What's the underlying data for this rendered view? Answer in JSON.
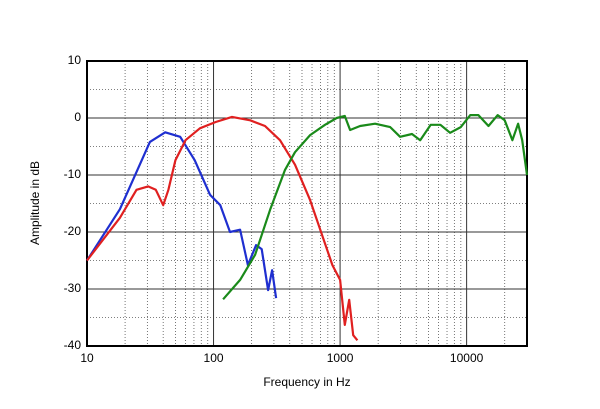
{
  "chart_data": {
    "type": "line",
    "xlabel": "Frequency in Hz",
    "ylabel": "Amplitude in dB",
    "xscale": "log",
    "grid": true,
    "xlim": [
      10,
      30000
    ],
    "ylim": [
      -40,
      10
    ],
    "xticks": [
      10,
      100,
      1000,
      10000
    ],
    "yticks": [
      10,
      0,
      -10,
      -20,
      -30,
      -40
    ],
    "minor_xticks": [
      20,
      30,
      40,
      50,
      60,
      70,
      80,
      90,
      200,
      300,
      400,
      500,
      600,
      700,
      800,
      900,
      2000,
      3000,
      4000,
      5000,
      6000,
      7000,
      8000,
      9000,
      20000
    ],
    "minor_yticks": [
      5,
      -5,
      -15,
      -25,
      -35
    ],
    "series": [
      {
        "color": "#1f2fd0",
        "x": [
          10,
          18.2,
          31.4,
          41.5,
          54.5,
          71,
          94,
          113,
          135,
          162,
          187,
          217,
          240,
          270,
          290,
          312
        ],
        "values": [
          -25,
          -16,
          -4.2,
          -2.5,
          -3.3,
          -7.4,
          -13.5,
          -15.3,
          -20,
          -19.6,
          -25.8,
          -22.3,
          -23,
          -30.2,
          -26.7,
          -31.6
        ]
      },
      {
        "color": "#e02020",
        "x": [
          10,
          18.2,
          24.6,
          30.4,
          35,
          40,
          44,
          50,
          60,
          78,
          104,
          140,
          195,
          255,
          335,
          440,
          580,
          720,
          870,
          1000,
          1090,
          1180,
          1270,
          1370
        ],
        "values": [
          -25,
          -17.5,
          -12.6,
          -12,
          -12.6,
          -15.3,
          -12.6,
          -7.4,
          -3.9,
          -1.8,
          -0.7,
          0.2,
          -0.4,
          -1.4,
          -3.9,
          -8.2,
          -14.4,
          -20.5,
          -25.8,
          -28.4,
          -36.3,
          -31.9,
          -38.1,
          -39
        ]
      },
      {
        "color": "#1a8a1a",
        "x": [
          119,
          162,
          213,
          280,
          367,
          440,
          580,
          760,
          940,
          1090,
          1200,
          1440,
          1890,
          2490,
          2980,
          3700,
          4300,
          5200,
          6200,
          7400,
          9000,
          10700,
          12400,
          14900,
          17600,
          20000,
          23000,
          25500,
          27500,
          30000
        ],
        "values": [
          -31.8,
          -28.4,
          -24,
          -16.1,
          -9.1,
          -6,
          -3,
          -1.2,
          0,
          0.35,
          -2.1,
          -1.4,
          -1,
          -1.6,
          -3.3,
          -2.8,
          -3.9,
          -1.2,
          -1.2,
          -2.6,
          -1.6,
          0.5,
          0.5,
          -1.4,
          0.5,
          -0.4,
          -3.9,
          -1,
          -3.9,
          -10
        ]
      }
    ]
  }
}
